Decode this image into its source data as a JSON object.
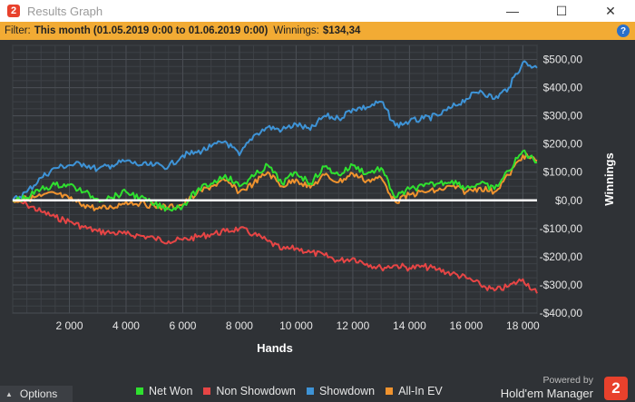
{
  "window": {
    "title": "Results Graph",
    "app_icon_glyph": "2",
    "controls": {
      "minimize": "—",
      "maximize": "☐",
      "close": "✕"
    }
  },
  "filter": {
    "label": "Filter:",
    "value": "This month (01.05.2019 0:00 to 01.06.2019 0:00)",
    "winnings_label": "Winnings:",
    "winnings_value": "$134,34",
    "help_glyph": "?"
  },
  "options": {
    "label": "Options"
  },
  "branding": {
    "powered_by": "Powered by",
    "name": "Hold'em Manager",
    "logo_glyph": "2"
  },
  "colors": {
    "background": "#2f3236",
    "plot_background": "#2f3236",
    "grid": "#4a4e54",
    "net_won": "#2fe02f",
    "non_showdown": "#e64545",
    "showdown": "#3e93d6",
    "all_in_ev": "#f0932e",
    "zero_line": "#ffffff",
    "filter_bar": "#f2ab34"
  },
  "chart_data": {
    "type": "line",
    "xlabel": "Hands",
    "ylabel": "Winnings",
    "xlim": [
      0,
      18500
    ],
    "ylim": [
      -400,
      550
    ],
    "x_ticks": [
      2000,
      4000,
      6000,
      8000,
      10000,
      12000,
      14000,
      16000,
      18000
    ],
    "x_tick_labels": [
      "2 000",
      "4 000",
      "6 000",
      "8 000",
      "10 000",
      "12 000",
      "14 000",
      "16 000",
      "18 000"
    ],
    "y_ticks": [
      -400,
      -300,
      -200,
      -100,
      0,
      100,
      200,
      300,
      400,
      500
    ],
    "y_tick_labels": [
      "-$400,00",
      "-$300,00",
      "-$200,00",
      "-$100,00",
      "$0,00",
      "$100,00",
      "$200,00",
      "$300,00",
      "$400,00",
      "$500,00"
    ],
    "grid": true,
    "legend_position": "bottom",
    "series": [
      {
        "name": "Net Won",
        "color": "#2fe02f",
        "x": [
          0,
          500,
          1000,
          1500,
          2000,
          2500,
          3000,
          3500,
          4000,
          4500,
          5000,
          5500,
          6000,
          6500,
          7000,
          7500,
          8000,
          8500,
          9000,
          9500,
          10000,
          10500,
          11000,
          11500,
          12000,
          12500,
          13000,
          13500,
          14000,
          14500,
          15000,
          15500,
          16000,
          16500,
          17000,
          17500,
          18000,
          18500
        ],
        "values": [
          0,
          10,
          40,
          55,
          55,
          30,
          5,
          10,
          30,
          10,
          -15,
          -30,
          -20,
          35,
          60,
          90,
          50,
          85,
          125,
          60,
          100,
          60,
          120,
          90,
          125,
          95,
          115,
          10,
          40,
          50,
          60,
          70,
          45,
          60,
          40,
          105,
          175,
          135
        ]
      },
      {
        "name": "Non Showdown",
        "color": "#e64545",
        "x": [
          0,
          500,
          1000,
          1500,
          2000,
          2500,
          3000,
          3500,
          4000,
          4500,
          5000,
          5500,
          6000,
          6500,
          7000,
          7500,
          8000,
          8500,
          9000,
          9500,
          10000,
          10500,
          11000,
          11500,
          12000,
          12500,
          13000,
          13500,
          14000,
          14500,
          15000,
          15500,
          16000,
          16500,
          17000,
          17500,
          18000,
          18500
        ],
        "values": [
          0,
          -15,
          -40,
          -60,
          -75,
          -95,
          -110,
          -115,
          -120,
          -125,
          -135,
          -145,
          -140,
          -130,
          -120,
          -110,
          -100,
          -120,
          -145,
          -175,
          -170,
          -185,
          -195,
          -215,
          -205,
          -225,
          -240,
          -230,
          -240,
          -235,
          -245,
          -260,
          -275,
          -300,
          -320,
          -305,
          -280,
          -330
        ]
      },
      {
        "name": "Showdown",
        "color": "#3e93d6",
        "x": [
          0,
          500,
          1000,
          1500,
          2000,
          2500,
          3000,
          3500,
          4000,
          4500,
          5000,
          5500,
          6000,
          6500,
          7000,
          7500,
          8000,
          8500,
          9000,
          9500,
          10000,
          10500,
          11000,
          11500,
          12000,
          12500,
          13000,
          13500,
          14000,
          14500,
          15000,
          15500,
          16000,
          16500,
          17000,
          17500,
          18000,
          18500
        ],
        "values": [
          0,
          30,
          80,
          115,
          125,
          130,
          110,
          125,
          140,
          125,
          125,
          120,
          160,
          170,
          190,
          210,
          160,
          230,
          260,
          250,
          270,
          250,
          300,
          290,
          325,
          330,
          350,
          265,
          280,
          290,
          300,
          330,
          360,
          390,
          360,
          400,
          490,
          470
        ]
      },
      {
        "name": "All-In EV",
        "color": "#f0932e",
        "x": [
          0,
          500,
          1000,
          1500,
          2000,
          2500,
          3000,
          3500,
          4000,
          4500,
          5000,
          5500,
          6000,
          6500,
          7000,
          7500,
          8000,
          8500,
          9000,
          9500,
          10000,
          10500,
          11000,
          11500,
          12000,
          12500,
          13000,
          13500,
          14000,
          14500,
          15000,
          15500,
          16000,
          16500,
          17000,
          17500,
          18000,
          18500
        ],
        "values": [
          0,
          5,
          15,
          25,
          5,
          -15,
          -30,
          -25,
          -5,
          -10,
          -20,
          -25,
          -15,
          25,
          50,
          70,
          30,
          60,
          100,
          50,
          75,
          45,
          90,
          65,
          95,
          70,
          80,
          -5,
          20,
          30,
          35,
          50,
          30,
          45,
          30,
          90,
          160,
          140
        ]
      }
    ]
  }
}
